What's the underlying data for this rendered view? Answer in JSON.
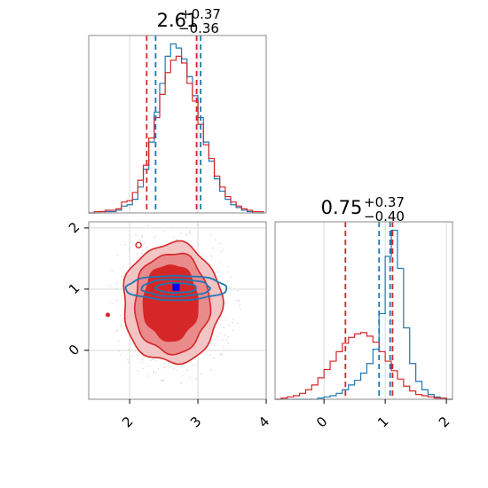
{
  "chart_data": {
    "type": "corner",
    "parameters": 2,
    "titles": [
      {
        "median": "2.61",
        "upper": "+0.37",
        "lower": "−0.36"
      },
      {
        "median": "0.75",
        "upper": "+0.37",
        "lower": "−0.40"
      }
    ],
    "colors": {
      "red": "#d62728",
      "blue": "#1f77b4",
      "red_light": "#ec9a9b",
      "blue_marker": "#0000ff"
    },
    "grid": true,
    "param1_range": [
      1.4,
      4.0
    ],
    "param2_range": [
      -0.8,
      2.1
    ],
    "x_ticks_param1": [
      "2",
      "3",
      "4"
    ],
    "y_ticks_param2": [
      "0",
      "1",
      "2"
    ],
    "x_ticks_param2": [
      "0",
      "1",
      "2"
    ],
    "param1_grid_lines": [
      2,
      3,
      4
    ],
    "param2_grid_lines": [
      0,
      1,
      2
    ],
    "hist1": {
      "bin_edges": [
        1.4,
        1.48,
        1.56,
        1.64,
        1.72,
        1.8,
        1.88,
        1.96,
        2.04,
        2.12,
        2.2,
        2.28,
        2.36,
        2.44,
        2.52,
        2.6,
        2.68,
        2.76,
        2.84,
        2.92,
        3.0,
        3.08,
        3.16,
        3.24,
        3.32,
        3.4,
        3.48,
        3.56,
        3.64,
        3.72,
        3.8,
        3.88,
        3.96
      ],
      "red": [
        0,
        1,
        1,
        2,
        2,
        3,
        8,
        9,
        15,
        24,
        35,
        55,
        70,
        87,
        103,
        112,
        115,
        110,
        95,
        82,
        65,
        50,
        40,
        27,
        19,
        12,
        8,
        5,
        3,
        2,
        1,
        1
      ],
      "blue": [
        0,
        0,
        1,
        1,
        1,
        2,
        5,
        6,
        10,
        19,
        32,
        52,
        74,
        95,
        115,
        124,
        121,
        113,
        100,
        86,
        70,
        52,
        38,
        25,
        16,
        10,
        6,
        4,
        2,
        1,
        0,
        0
      ],
      "red_quantiles": [
        2.25,
        2.98
      ],
      "blue_quantiles": [
        2.38,
        3.04
      ]
    },
    "hist2": {
      "bin_edges": [
        -0.8,
        -0.7,
        -0.6,
        -0.5,
        -0.4,
        -0.3,
        -0.2,
        -0.1,
        0.0,
        0.1,
        0.2,
        0.3,
        0.4,
        0.5,
        0.6,
        0.7,
        0.8,
        0.9,
        1.0,
        1.1,
        1.2,
        1.3,
        1.4,
        1.5,
        1.6,
        1.7,
        1.8,
        1.9,
        2.0,
        2.1
      ],
      "red": [
        0,
        1,
        2,
        3,
        5,
        8,
        12,
        18,
        25,
        32,
        40,
        47,
        52,
        55,
        56,
        53,
        48,
        40,
        32,
        24,
        17,
        11,
        7,
        4,
        3,
        2,
        1,
        1,
        0
      ],
      "blue": [
        0,
        0,
        0,
        0,
        0,
        0,
        0,
        1,
        2,
        3,
        5,
        8,
        12,
        16,
        22,
        30,
        42,
        72,
        120,
        142,
        110,
        60,
        30,
        15,
        8,
        4,
        2,
        1,
        0
      ],
      "red_quantiles": [
        0.35,
        1.12
      ],
      "blue_quantiles": [
        0.9,
        1.08
      ]
    },
    "scatter_2d": {
      "red_levels": [
        {
          "center": [
            2.62,
            0.77
          ],
          "radius_x": 0.72,
          "radius_y": 0.98
        },
        {
          "center": [
            2.62,
            0.77
          ],
          "radius_x": 0.55,
          "radius_y": 0.82
        },
        {
          "center": [
            2.6,
            0.78
          ],
          "radius_x": 0.4,
          "radius_y": 0.62
        }
      ],
      "blue_levels": [
        {
          "center": [
            2.68,
            1.02
          ],
          "radius_x": 0.74,
          "radius_y": 0.2
        },
        {
          "center": [
            2.68,
            1.02
          ],
          "radius_x": 0.5,
          "radius_y": 0.14
        },
        {
          "center": [
            2.68,
            1.02
          ],
          "radius_x": 0.3,
          "radius_y": 0.08
        }
      ],
      "red_marker": [
        2.6,
        0.75
      ],
      "blue_marker": [
        2.68,
        1.03
      ]
    }
  }
}
